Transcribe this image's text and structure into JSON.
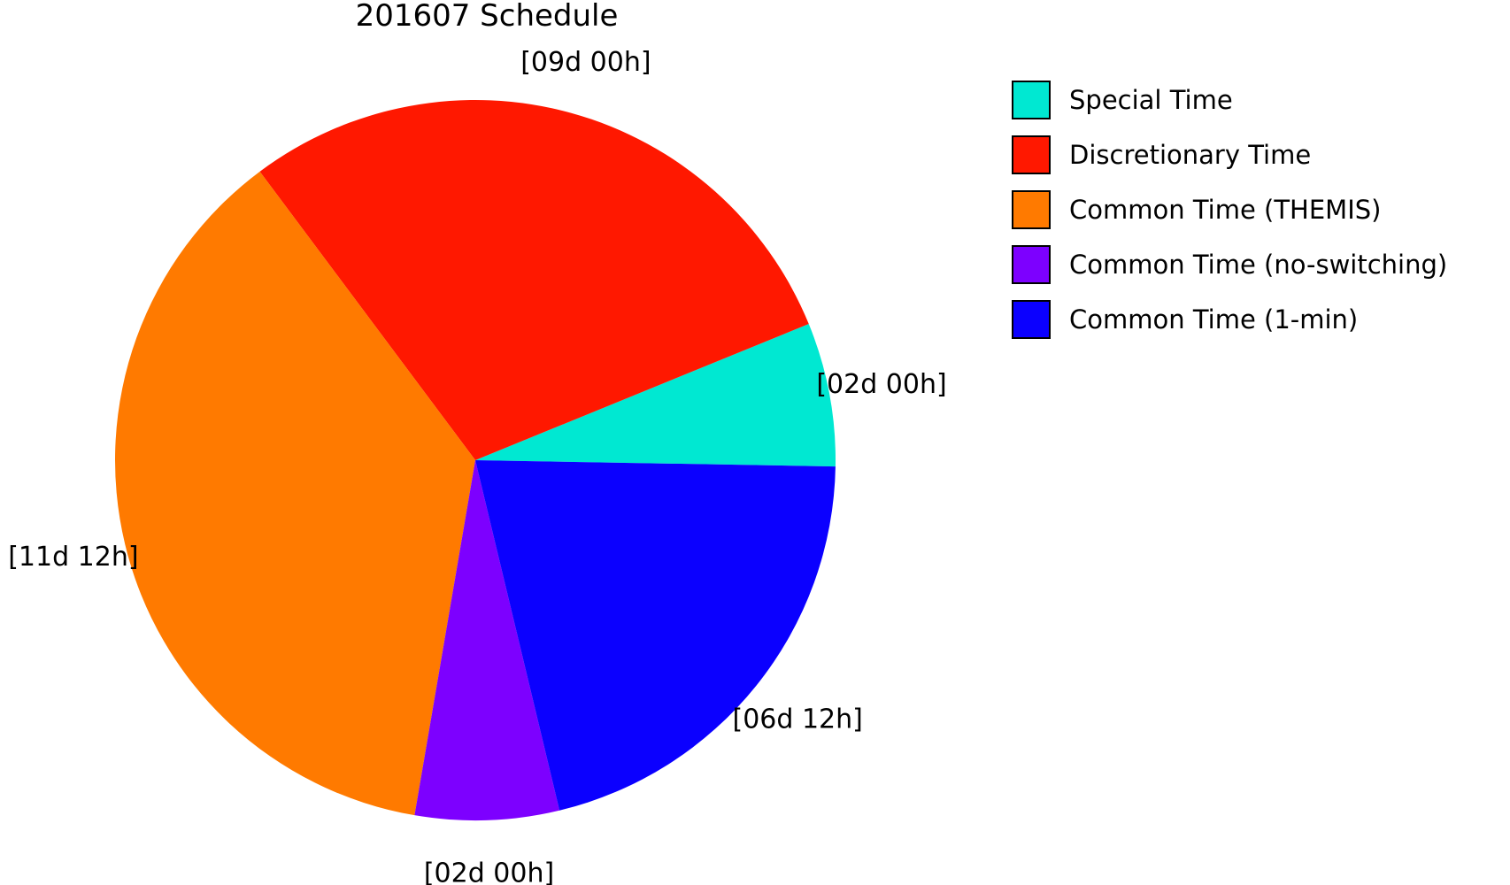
{
  "chart_data": {
    "type": "pie",
    "title": "201607 Schedule",
    "legend_position": "right",
    "slices": [
      {
        "name": "Special Time",
        "label": "[02d 00h]",
        "value": 2.0,
        "color": "#00e8d2"
      },
      {
        "name": "Discretionary Time",
        "label": "[09d 00h]",
        "value": 9.0,
        "color": "#ff1800"
      },
      {
        "name": "Common Time (THEMIS)",
        "label": "[11d 12h]",
        "value": 11.5,
        "color": "#ff7a00"
      },
      {
        "name": "Common Time (no-switching)",
        "label": "[02d 00h]",
        "value": 2.0,
        "color": "#7d00ff"
      },
      {
        "name": "Common Time (1-min)",
        "label": "[06d 12h]",
        "value": 6.5,
        "color": "#0b00ff"
      }
    ]
  }
}
